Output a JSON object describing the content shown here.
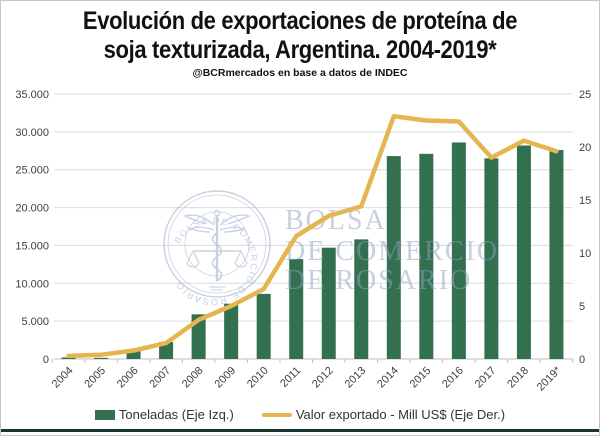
{
  "header": {
    "title_line1": "Evolución de exportaciones de proteína de",
    "title_line2": "soja texturizada, Argentina. 2004-2019*",
    "subtitle": "@BCRmercados en base a datos de INDEC"
  },
  "legend": {
    "bars_label": "Toneladas (Eje Izq.)",
    "line_label": "Valor exportado - Mill US$ (Eje Der.)"
  },
  "watermark": {
    "seal_text": "BOLSA DE COMERCIO DE ROSARIO",
    "line1": "BOLSA",
    "line2": "DE COMERCIO",
    "line3": "DE ROSARIO"
  },
  "colors": {
    "bar": "#33704F",
    "line": "#E5B54F",
    "watermark": "#A3B3CC",
    "grid": "#DCDCDC",
    "axis_line": "#BFBFBF",
    "axis_text": "#404040",
    "bottom_band": "#173431"
  },
  "chart_data": {
    "type": "bar",
    "secondary_type": "line",
    "title": "Evolución de exportaciones de proteína de soja texturizada, Argentina. 2004-2019*",
    "categories": [
      "2004",
      "2005",
      "2006",
      "2007",
      "2008",
      "2009",
      "2010",
      "2011",
      "2012",
      "2013",
      "2014",
      "2015",
      "2016",
      "2017",
      "2018",
      "2019*"
    ],
    "series": [
      {
        "name": "Toneladas (Eje Izq.)",
        "type": "bar",
        "axis": "left",
        "values": [
          200,
          150,
          1300,
          2250,
          5900,
          7300,
          8600,
          13200,
          14700,
          15800,
          26800,
          27100,
          28600,
          26500,
          28200,
          27600
        ]
      },
      {
        "name": "Valor exportado - Mill US$ (Eje Der.)",
        "type": "line",
        "axis": "right",
        "values": [
          0.3,
          0.4,
          0.8,
          1.5,
          3.7,
          5.0,
          6.6,
          11.6,
          13.5,
          14.4,
          22.9,
          22.5,
          22.4,
          19.0,
          20.6,
          19.6
        ]
      }
    ],
    "left_axis": {
      "ylim": [
        0,
        35000
      ],
      "tick_labels": [
        "0",
        "5.000",
        "10.000",
        "15.000",
        "20.000",
        "25.000",
        "30.000",
        "35.000"
      ]
    },
    "right_axis": {
      "ylim": [
        0,
        25
      ],
      "tick_labels": [
        "0",
        "5",
        "10",
        "15",
        "20",
        "25"
      ]
    },
    "grid": "horizontal",
    "legend_position": "bottom"
  }
}
